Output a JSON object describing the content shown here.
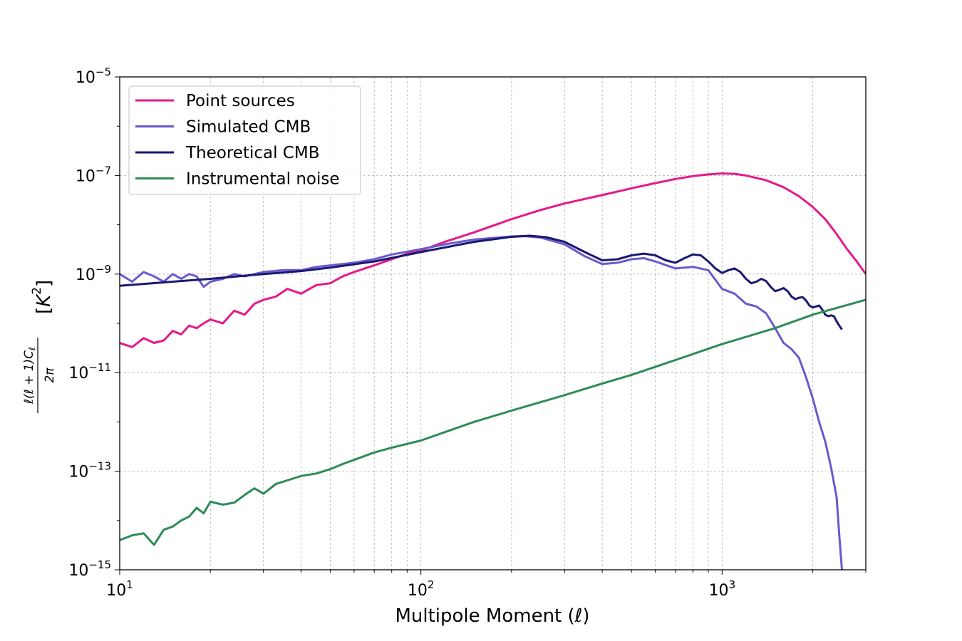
{
  "chart_data": {
    "type": "line",
    "title": "",
    "xlabel": "Multipole Moment (ℓ)",
    "ylabel": "ℓ(ℓ + 1)Cℓ / 2π [K²]",
    "xscale": "log",
    "yscale": "log",
    "xlim": [
      10,
      3000
    ],
    "ylim": [
      1e-15,
      1e-05
    ],
    "grid": true,
    "legend_position": "top-left",
    "x_ticks": [
      {
        "value": 10,
        "base": "10",
        "exp": "1"
      },
      {
        "value": 100,
        "base": "10",
        "exp": "2"
      },
      {
        "value": 1000,
        "base": "10",
        "exp": "3"
      }
    ],
    "y_ticks": [
      {
        "value": 1e-15,
        "base": "10",
        "exp": "−15"
      },
      {
        "value": 1e-13,
        "base": "10",
        "exp": "−13"
      },
      {
        "value": 1e-11,
        "base": "10",
        "exp": "−11"
      },
      {
        "value": 1e-09,
        "base": "10",
        "exp": "−9"
      },
      {
        "value": 1e-07,
        "base": "10",
        "exp": "−7"
      },
      {
        "value": 1e-05,
        "base": "10",
        "exp": "−5"
      }
    ],
    "series": [
      {
        "name": "Point sources",
        "color": "#e6198a",
        "x": [
          10,
          11,
          12,
          13,
          14,
          15,
          16,
          17,
          18,
          19,
          20,
          22,
          24,
          26,
          28,
          30,
          33,
          36,
          40,
          45,
          50,
          55,
          60,
          70,
          80,
          90,
          100,
          120,
          150,
          200,
          250,
          300,
          400,
          500,
          600,
          700,
          800,
          900,
          1000,
          1100,
          1200,
          1400,
          1600,
          1800,
          2000,
          2200,
          2400,
          2600,
          2800,
          3000
        ],
        "y": [
          4e-11,
          3.3e-11,
          5e-11,
          4e-11,
          4.5e-11,
          7e-11,
          6e-11,
          9e-11,
          8e-11,
          1e-10,
          1.2e-10,
          1e-10,
          1.8e-10,
          1.5e-10,
          2.5e-10,
          3e-10,
          3.5e-10,
          5e-10,
          4e-10,
          6e-10,
          6.5e-10,
          9e-10,
          1.1e-09,
          1.5e-09,
          2e-09,
          2.6e-09,
          3e-09,
          4.5e-09,
          7e-09,
          1.3e-08,
          2e-08,
          2.7e-08,
          4e-08,
          5.5e-08,
          7e-08,
          8.5e-08,
          9.7e-08,
          1.05e-07,
          1.1e-07,
          1.08e-07,
          1e-07,
          8e-08,
          5.8e-08,
          3.8e-08,
          2.3e-08,
          1.3e-08,
          6.5e-09,
          3.2e-09,
          1.8e-09,
          1e-09
        ]
      },
      {
        "name": "Simulated CMB",
        "color": "#6a5acd",
        "x": [
          10,
          11,
          12,
          13,
          14,
          15,
          16,
          17,
          18,
          19,
          20,
          22,
          24,
          26,
          28,
          30,
          35,
          40,
          45,
          50,
          60,
          70,
          80,
          100,
          120,
          150,
          200,
          220,
          250,
          300,
          350,
          400,
          450,
          500,
          550,
          600,
          700,
          800,
          900,
          1000,
          1100,
          1200,
          1300,
          1400,
          1500,
          1600,
          1700,
          1800,
          1900,
          2000,
          2100,
          2200,
          2300,
          2400,
          2450,
          2500,
          2510
        ],
        "y": [
          1e-09,
          7e-10,
          1.1e-09,
          9e-10,
          7e-10,
          1e-09,
          8e-10,
          1e-09,
          9e-10,
          5.5e-10,
          7e-10,
          8e-10,
          1e-09,
          9e-10,
          1e-09,
          1.1e-09,
          1.2e-09,
          1.2e-09,
          1.4e-09,
          1.5e-09,
          1.7e-09,
          2e-09,
          2.5e-09,
          3.2e-09,
          4e-09,
          5e-09,
          5.8e-09,
          5.9e-09,
          5.5e-09,
          4e-09,
          2.3e-09,
          1.6e-09,
          1.7e-09,
          2e-09,
          2.1e-09,
          1.8e-09,
          1.3e-09,
          1.4e-09,
          1.2e-09,
          5e-10,
          4e-10,
          2.5e-10,
          2.2e-10,
          1.6e-10,
          8e-11,
          4e-11,
          3e-11,
          2e-11,
          8e-12,
          3e-12,
          1e-12,
          4e-13,
          1.2e-13,
          3e-14,
          5e-15,
          1e-15,
          8e-16
        ]
      },
      {
        "name": "Theoretical CMB",
        "color": "#191970",
        "x": [
          10,
          15,
          20,
          30,
          40,
          50,
          70,
          100,
          150,
          200,
          230,
          260,
          300,
          350,
          400,
          450,
          500,
          550,
          600,
          650,
          700,
          750,
          800,
          850,
          900,
          950,
          1000,
          1050,
          1100,
          1150,
          1200,
          1250,
          1300,
          1350,
          1400,
          1450,
          1500,
          1550,
          1600,
          1650,
          1700,
          1750,
          1800,
          1850,
          1900,
          1950,
          2000,
          2050,
          2100,
          2150,
          2200,
          2250,
          2300,
          2350,
          2400,
          2450,
          2500
        ],
        "y": [
          5.8e-10,
          7e-10,
          8e-10,
          1e-09,
          1.15e-09,
          1.35e-09,
          1.8e-09,
          2.8e-09,
          4.5e-09,
          5.7e-09,
          6e-09,
          5.6e-09,
          4.5e-09,
          2.8e-09,
          1.9e-09,
          2e-09,
          2.4e-09,
          2.6e-09,
          2.4e-09,
          1.9e-09,
          1.7e-09,
          2.1e-09,
          2.5e-09,
          2.4e-09,
          1.8e-09,
          1.3e-09,
          1.05e-09,
          1.2e-09,
          1.3e-09,
          1.1e-09,
          8e-10,
          6.5e-10,
          7e-10,
          8e-10,
          7.2e-10,
          5.5e-10,
          4.5e-10,
          4.8e-10,
          5.2e-10,
          4.5e-10,
          3.5e-10,
          3.1e-10,
          3.3e-10,
          3.4e-10,
          2.9e-10,
          2.3e-10,
          2.1e-10,
          2.2e-10,
          2.3e-10,
          1.9e-10,
          1.5e-10,
          1.4e-10,
          1.45e-10,
          1.4e-10,
          1.1e-10,
          9e-11,
          7.5e-11
        ]
      },
      {
        "name": "Instrumental noise",
        "color": "#2e8b57",
        "x": [
          10,
          11,
          12,
          13,
          14,
          15,
          16,
          17,
          18,
          19,
          20,
          22,
          24,
          26,
          28,
          30,
          33,
          36,
          40,
          45,
          50,
          55,
          60,
          70,
          80,
          100,
          150,
          200,
          300,
          400,
          500,
          700,
          1000,
          1500,
          2000,
          2500,
          3000
        ],
        "y": [
          4e-15,
          5e-15,
          5.5e-15,
          3.2e-15,
          6.5e-15,
          7.5e-15,
          1e-14,
          1.2e-14,
          1.8e-14,
          1.4e-14,
          2.4e-14,
          2.1e-14,
          2.3e-14,
          3.3e-14,
          4.5e-14,
          3.5e-14,
          5.5e-14,
          6.5e-14,
          8e-14,
          9e-14,
          1.1e-13,
          1.4e-13,
          1.7e-13,
          2.4e-13,
          3e-13,
          4.2e-13,
          1e-12,
          1.7e-12,
          3.5e-12,
          6e-12,
          9e-12,
          1.8e-11,
          3.8e-11,
          8e-11,
          1.5e-10,
          2.2e-10,
          3e-10
        ]
      }
    ]
  }
}
